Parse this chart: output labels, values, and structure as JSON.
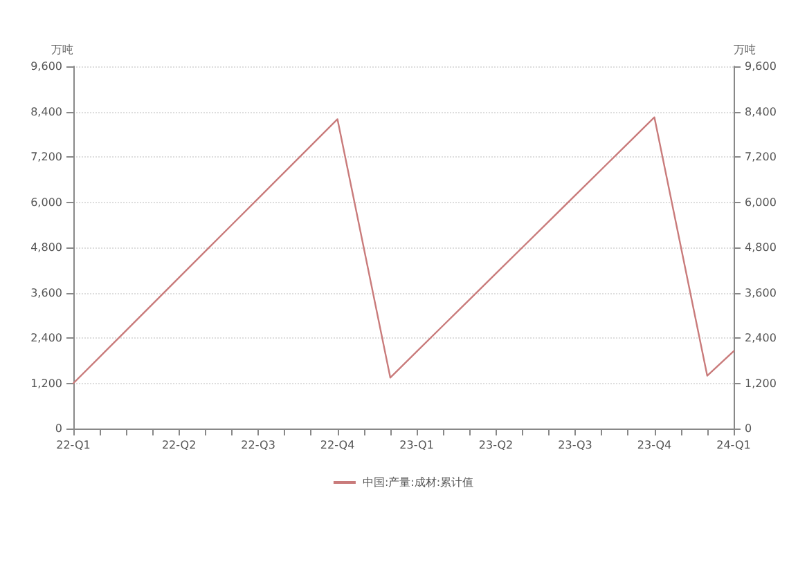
{
  "chart_data": {
    "type": "line",
    "ylabel": "万吨",
    "y2label": "万吨",
    "categories": [
      "22-Q1",
      null,
      null,
      null,
      "22-Q2",
      null,
      null,
      "22-Q3",
      null,
      null,
      "22-Q4",
      null,
      null,
      "23-Q1",
      null,
      null,
      "23-Q2",
      null,
      null,
      "23-Q3",
      null,
      null,
      "23-Q4",
      null,
      null,
      "24-Q1"
    ],
    "series": [
      {
        "name": "中国:产量:成材:累计值",
        "color": "#c97b7b",
        "values": [
          1200,
          1900,
          2600,
          3300,
          4000,
          4700,
          5400,
          6100,
          6800,
          7500,
          8200,
          null,
          1350,
          2040,
          2730,
          3420,
          4110,
          4800,
          5490,
          6180,
          6870,
          7560,
          8250,
          null,
          1400,
          2050
        ]
      }
    ],
    "ylim": [
      0,
      9600
    ],
    "yticks": [
      {
        "value": 0,
        "label": "0"
      },
      {
        "value": 1200,
        "label": "1,200"
      },
      {
        "value": 2400,
        "label": "2,400"
      },
      {
        "value": 3600,
        "label": "3,600"
      },
      {
        "value": 4800,
        "label": "4,800"
      },
      {
        "value": 6000,
        "label": "6,000"
      },
      {
        "value": 7200,
        "label": "7,200"
      },
      {
        "value": 8400,
        "label": "8,400"
      },
      {
        "value": 9600,
        "label": "9,600"
      }
    ],
    "y2lim": [
      0,
      9600
    ],
    "y2ticks": [
      {
        "value": 0,
        "label": "0"
      },
      {
        "value": 1200,
        "label": "1,200"
      },
      {
        "value": 2400,
        "label": "2,400"
      },
      {
        "value": 3600,
        "label": "3,600"
      },
      {
        "value": 4800,
        "label": "4,800"
      },
      {
        "value": 6000,
        "label": "6,000"
      },
      {
        "value": 7200,
        "label": "7,200"
      },
      {
        "value": 8400,
        "label": "8,400"
      },
      {
        "value": 9600,
        "label": "9,600"
      }
    ],
    "grid": "y",
    "legend": "bottom",
    "marker": "none",
    "line_style": "solid"
  }
}
